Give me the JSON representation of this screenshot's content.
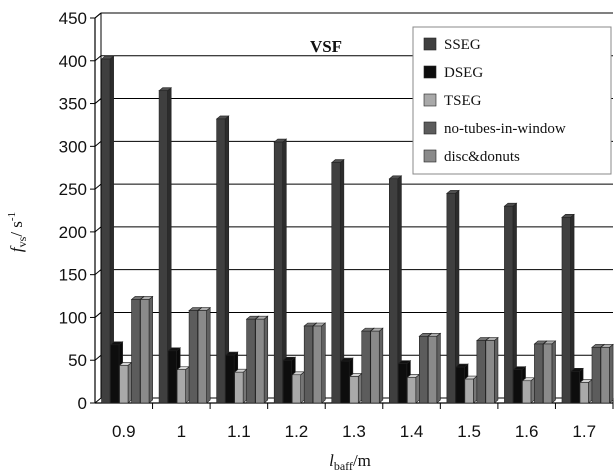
{
  "chart_data": {
    "type": "bar",
    "title": "VSF",
    "xlabel": {
      "main": "l",
      "sub": "baff",
      "unit": "/m"
    },
    "ylabel": {
      "main": "f",
      "sub": "vs",
      "unit": "/ s",
      "sup": "-1"
    },
    "ylim": [
      0,
      450
    ],
    "yticks": [
      0,
      50,
      100,
      150,
      200,
      250,
      300,
      350,
      400,
      450
    ],
    "categories": [
      "0.9",
      "1",
      "1.1",
      "1.2",
      "1.3",
      "1.4",
      "1.5",
      "1.6",
      "1.7"
    ],
    "grid": "horizontal",
    "legend_position": "top-right",
    "series": [
      {
        "name": "SSEG",
        "color": "#3f3f3f",
        "values": [
          402,
          365,
          332,
          305,
          281,
          262,
          245,
          230,
          217
        ]
      },
      {
        "name": "DSEG",
        "color": "#0d0d0d",
        "values": [
          68,
          61,
          56,
          50,
          49,
          46,
          42,
          39,
          37
        ]
      },
      {
        "name": "TSEG",
        "color": "#a9a9a9",
        "values": [
          44,
          39,
          36,
          33,
          31,
          30,
          28,
          26,
          24
        ]
      },
      {
        "name": "no-tubes-in-window",
        "color": "#5c5c5c",
        "values": [
          121,
          108,
          98,
          90,
          84,
          78,
          73,
          69,
          65
        ]
      },
      {
        "name": "disc&donuts",
        "color": "#8a8a8a",
        "values": [
          121,
          108,
          98,
          90,
          84,
          78,
          73,
          69,
          65
        ]
      }
    ]
  }
}
